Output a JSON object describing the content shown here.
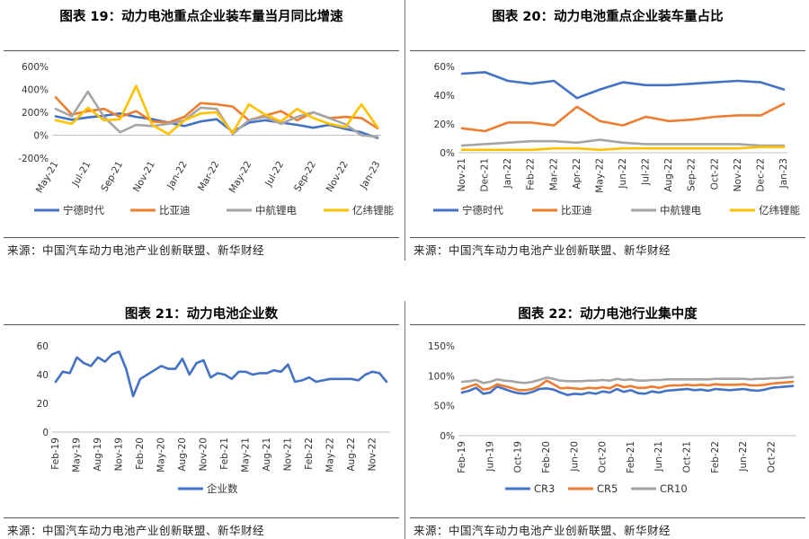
{
  "charts": [
    {
      "title": "图表 19：动力电池重点企业装车量当月同比增速",
      "source": "来源：中国汽车动力电池产业创新联盟、新华财经",
      "chart_data": {
        "type": "line",
        "categories": [
          "May-21",
          "Jun-21",
          "Jul-21",
          "Aug-21",
          "Sep-21",
          "Oct-21",
          "Nov-21",
          "Dec-21",
          "Jan-22",
          "Feb-22",
          "Mar-22",
          "Apr-22",
          "May-22",
          "Jun-22",
          "Jul-22",
          "Aug-22",
          "Sep-22",
          "Oct-22",
          "Nov-22",
          "Dec-22",
          "Jan-23"
        ],
        "tick_labels": [
          "May-21",
          "Jul-21",
          "Sep-21",
          "Nov-21",
          "Jan-22",
          "Mar-22",
          "May-22",
          "Jul-22",
          "Sep-22",
          "Nov-22",
          "Jan-23"
        ],
        "ylim": [
          -200,
          600
        ],
        "yticks": [
          -200,
          0,
          200,
          400,
          600
        ],
        "ytick_labels": [
          "-200%",
          "0%",
          "200%",
          "400%",
          "600%"
        ],
        "legend_position": "bottom",
        "series": [
          {
            "name": "宁德时代",
            "color": "#4472C4",
            "values": [
              165,
              135,
              155,
              170,
              190,
              160,
              140,
              110,
              80,
              120,
              140,
              30,
              110,
              130,
              110,
              90,
              65,
              90,
              55,
              25,
              -25
            ]
          },
          {
            "name": "比亚迪",
            "color": "#ED7D31",
            "values": [
              330,
              180,
              210,
              230,
              160,
              210,
              120,
              110,
              160,
              280,
              270,
              250,
              130,
              170,
              210,
              130,
              200,
              150,
              160,
              150,
              60
            ]
          },
          {
            "name": "中航锂电",
            "color": "#A5A5A5",
            "values": [
              230,
              165,
              380,
              160,
              25,
              90,
              80,
              100,
              130,
              240,
              230,
              10,
              130,
              160,
              100,
              160,
              200,
              150,
              95,
              0,
              -15
            ]
          },
          {
            "name": "亿纬锂能",
            "color": "#FFC000",
            "values": [
              130,
              100,
              240,
              130,
              140,
              430,
              90,
              10,
              130,
              190,
              200,
              20,
              270,
              180,
              120,
              230,
              150,
              100,
              70,
              270,
              70
            ]
          }
        ]
      }
    },
    {
      "title": "图表 20：动力电池重点企业装车量占比",
      "source": "来源：中国汽车动力电池产业创新联盟、新华财经",
      "chart_data": {
        "type": "line",
        "categories": [
          "Nov-21",
          "Dec-21",
          "Jan-22",
          "Feb-22",
          "Mar-22",
          "Apr-22",
          "May-22",
          "Jun-22",
          "Jul-22",
          "Aug-22",
          "Sep-22",
          "Oct-22",
          "Nov-22",
          "Dec-22",
          "Jan-23"
        ],
        "tick_labels": [
          "Nov-21",
          "Dec-21",
          "Jan-22",
          "Feb-22",
          "Mar-22",
          "Apr-22",
          "May-22",
          "Jun-22",
          "Jul-22",
          "Aug-22",
          "Sep-22",
          "Oct-22",
          "Nov-22",
          "Dec-22",
          "Jan-23"
        ],
        "ylim": [
          0,
          60
        ],
        "yticks": [
          0,
          20,
          40,
          60
        ],
        "ytick_labels": [
          "0%",
          "20%",
          "40%",
          "60%"
        ],
        "legend_position": "bottom",
        "series": [
          {
            "name": "宁德时代",
            "color": "#4472C4",
            "values": [
              55,
              56,
              50,
              48,
              50,
              38,
              44,
              49,
              47,
              47,
              48,
              49,
              50,
              49,
              44
            ]
          },
          {
            "name": "比亚迪",
            "color": "#ED7D31",
            "values": [
              17,
              15,
              21,
              21,
              19,
              32,
              22,
              19,
              25,
              22,
              23,
              25,
              26,
              26,
              34
            ]
          },
          {
            "name": "中航锂电",
            "color": "#A5A5A5",
            "values": [
              5,
              6,
              7,
              8,
              8,
              7,
              9,
              7,
              6,
              6,
              6,
              6,
              6,
              5,
              5
            ]
          },
          {
            "name": "亿纬锂能",
            "color": "#FFC000",
            "values": [
              2,
              2,
              2,
              2,
              3,
              3,
              2,
              3,
              3,
              3,
              3,
              3,
              3,
              4,
              4
            ]
          }
        ]
      }
    },
    {
      "title": "图表 21：动力电池企业数",
      "source": "来源：中国汽车动力电池产业创新联盟、新华财经",
      "chart_data": {
        "type": "line",
        "categories": [
          "Feb-19",
          "Mar-19",
          "Apr-19",
          "May-19",
          "Jun-19",
          "Jul-19",
          "Aug-19",
          "Sep-19",
          "Oct-19",
          "Nov-19",
          "Dec-19",
          "Jan-20",
          "Feb-20",
          "Mar-20",
          "Apr-20",
          "May-20",
          "Jun-20",
          "Jul-20",
          "Aug-20",
          "Sep-20",
          "Oct-20",
          "Nov-20",
          "Dec-20",
          "Jan-21",
          "Feb-21",
          "Mar-21",
          "Apr-21",
          "May-21",
          "Jun-21",
          "Jul-21",
          "Aug-21",
          "Sep-21",
          "Oct-21",
          "Nov-21",
          "Dec-21",
          "Jan-22",
          "Feb-22",
          "Mar-22",
          "Apr-22",
          "May-22",
          "Jun-22",
          "Jul-22",
          "Aug-22",
          "Sep-22",
          "Oct-22",
          "Nov-22",
          "Dec-22",
          "Jan-23"
        ],
        "tick_labels": [
          "Feb-19",
          "May-19",
          "Aug-19",
          "Nov-19",
          "Feb-20",
          "May-20",
          "Aug-20",
          "Nov-20",
          "Feb-21",
          "May-21",
          "Aug-21",
          "Nov-21",
          "Feb-22",
          "May-22",
          "Aug-22",
          "Nov-22"
        ],
        "ylim": [
          0,
          60
        ],
        "yticks": [
          0,
          20,
          40,
          60
        ],
        "ytick_labels": [
          "0",
          "20",
          "40",
          "60"
        ],
        "legend_position": "bottom",
        "series": [
          {
            "name": "企业数",
            "color": "#4472C4",
            "values": [
              35,
              42,
              41,
              52,
              48,
              46,
              52,
              49,
              54,
              56,
              44,
              25,
              37,
              40,
              43,
              46,
              44,
              44,
              51,
              40,
              48,
              50,
              38,
              41,
              40,
              37,
              42,
              42,
              40,
              41,
              41,
              43,
              42,
              47,
              35,
              36,
              38,
              35,
              36,
              37,
              37,
              37,
              37,
              36,
              40,
              42,
              41,
              35
            ]
          }
        ]
      }
    },
    {
      "title": "图表 22：动力电池行业集中度",
      "source": "来源：中国汽车动力电池产业创新联盟、新华财经",
      "chart_data": {
        "type": "line",
        "categories": [
          "Feb-19",
          "Mar-19",
          "Apr-19",
          "May-19",
          "Jun-19",
          "Jul-19",
          "Aug-19",
          "Sep-19",
          "Oct-19",
          "Nov-19",
          "Dec-19",
          "Jan-20",
          "Feb-20",
          "Mar-20",
          "Apr-20",
          "May-20",
          "Jun-20",
          "Jul-20",
          "Aug-20",
          "Sep-20",
          "Oct-20",
          "Nov-20",
          "Dec-20",
          "Jan-21",
          "Feb-21",
          "Mar-21",
          "Apr-21",
          "May-21",
          "Jun-21",
          "Jul-21",
          "Aug-21",
          "Sep-21",
          "Oct-21",
          "Nov-21",
          "Dec-21",
          "Jan-22",
          "Feb-22",
          "Mar-22",
          "Apr-22",
          "May-22",
          "Jun-22",
          "Jul-22",
          "Aug-22",
          "Sep-22",
          "Oct-22",
          "Nov-22",
          "Dec-22",
          "Jan-23"
        ],
        "tick_labels": [
          "Feb-19",
          "Jun-19",
          "Oct-19",
          "Feb-20",
          "Jun-20",
          "Oct-20",
          "Feb-21",
          "Jun-21",
          "Oct-21",
          "Feb-22",
          "Jun-22",
          "Oct-22"
        ],
        "ylim": [
          0,
          150
        ],
        "yticks": [
          0,
          50,
          100,
          150
        ],
        "ytick_labels": [
          "0%",
          "50%",
          "100%",
          "150%"
        ],
        "legend_position": "bottom",
        "series": [
          {
            "name": "CR3",
            "color": "#4472C4",
            "values": [
              72,
              75,
              80,
              70,
              72,
              82,
              78,
              74,
              71,
              70,
              73,
              78,
              79,
              77,
              72,
              68,
              70,
              69,
              72,
              70,
              74,
              72,
              78,
              73,
              76,
              71,
              70,
              74,
              72,
              75,
              76,
              77,
              78,
              76,
              77,
              75,
              78,
              77,
              76,
              77,
              78,
              76,
              75,
              77,
              80,
              81,
              82,
              83
            ]
          },
          {
            "name": "CR5",
            "color": "#ED7D31",
            "values": [
              78,
              82,
              86,
              77,
              79,
              86,
              83,
              80,
              76,
              76,
              78,
              83,
              92,
              86,
              79,
              80,
              79,
              78,
              80,
              79,
              81,
              79,
              85,
              81,
              83,
              80,
              80,
              82,
              80,
              83,
              84,
              84,
              85,
              84,
              85,
              84,
              86,
              85,
              85,
              85,
              86,
              84,
              84,
              85,
              87,
              88,
              89,
              90
            ]
          },
          {
            "name": "CR10",
            "color": "#A5A5A5",
            "values": [
              90,
              91,
              93,
              88,
              90,
              94,
              92,
              91,
              89,
              88,
              90,
              93,
              97,
              95,
              92,
              91,
              91,
              91,
              92,
              92,
              93,
              92,
              95,
              93,
              94,
              92,
              92,
              93,
              93,
              94,
              94,
              94,
              94,
              94,
              94,
              94,
              95,
              95,
              95,
              95,
              95,
              94,
              95,
              95,
              96,
              96,
              97,
              98
            ]
          }
        ]
      }
    }
  ]
}
